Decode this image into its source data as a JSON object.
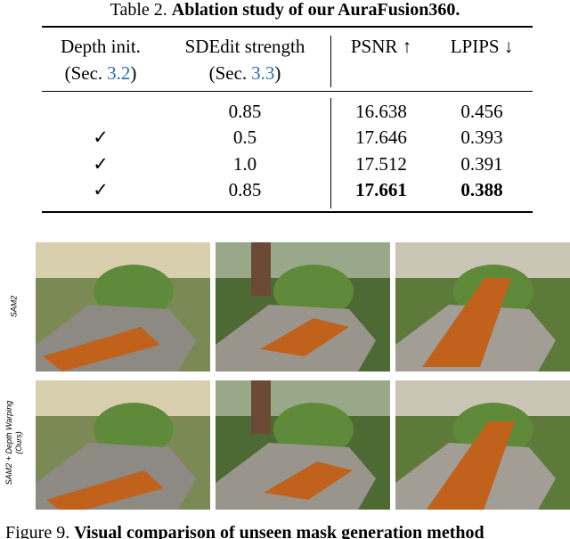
{
  "table": {
    "caption_label": "Table 2.",
    "caption_title": "Ablation study of our AuraFusion360.",
    "header": [
      {
        "line1": "Depth init.",
        "line2_prefix": "(Sec.",
        "ref": "3.2",
        "line2_suffix": ")"
      },
      {
        "line1": "SDEdit strength",
        "line2_prefix": "(Sec.",
        "ref": "3.3",
        "line2_suffix": ")"
      },
      {
        "line1": "PSNR ↑"
      },
      {
        "line1": "LPIPS ↓"
      }
    ],
    "rows": [
      [
        null,
        "0.85",
        "16.638",
        "0.456"
      ],
      [
        "✓",
        "0.5",
        "17.646",
        "0.393"
      ],
      [
        "✓",
        "1.0",
        "17.512",
        "0.391"
      ],
      [
        "✓",
        "0.85",
        "17.661",
        "0.388"
      ]
    ]
  },
  "figure": {
    "row_labels": [
      [
        "SAM2"
      ],
      [
        "SAM2 + Depth Warping",
        "(Ours)"
      ]
    ],
    "caption_label": "Figure 9.",
    "caption_title": "Visual comparison of unseen mask generation method"
  }
}
